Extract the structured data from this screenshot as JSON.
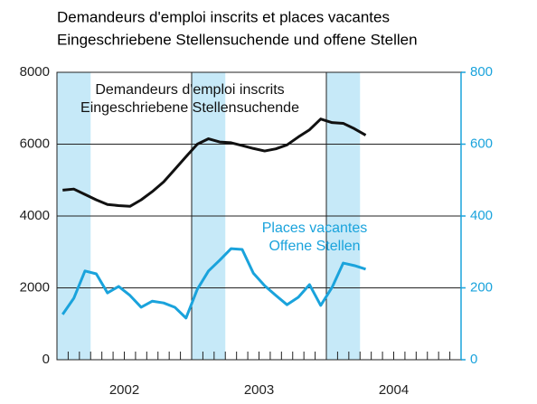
{
  "chart_data": {
    "type": "line",
    "title": "Demandeurs d'emploi inscrits et places vacantes",
    "subtitle": "Eingeschriebene Stellensuchende und offene Stellen",
    "x": [
      2002.042,
      2002.125,
      2002.208,
      2002.292,
      2002.375,
      2002.458,
      2002.542,
      2002.625,
      2002.708,
      2002.792,
      2002.875,
      2002.958,
      2003.042,
      2003.125,
      2003.208,
      2003.292,
      2003.375,
      2003.458,
      2003.542,
      2003.625,
      2003.708,
      2003.792,
      2003.875,
      2003.958,
      2004.042,
      2004.125,
      2004.208,
      2004.292
    ],
    "xlim": [
      2002,
      2005
    ],
    "xticks": [
      {
        "value": 2002.5,
        "label": "2002"
      },
      {
        "value": 2003.5,
        "label": "2003"
      },
      {
        "value": 2004.5,
        "label": "2004"
      }
    ],
    "xgrid": [
      2003,
      2004
    ],
    "shaded": [
      [
        2002,
        2002.25
      ],
      [
        2003,
        2003.25
      ],
      [
        2004,
        2004.25
      ]
    ],
    "shade_color": "#c6e9f8",
    "ylim": [
      0,
      8000
    ],
    "yticks": [
      0,
      2000,
      4000,
      6000,
      8000
    ],
    "y2lim": [
      0,
      800
    ],
    "y2ticks": [
      0,
      200,
      400,
      600,
      800
    ],
    "grid": true,
    "series": [
      {
        "labels": [
          "Demandeurs d'emploi inscrits",
          "Eingeschriebene Stellensuchende"
        ],
        "color": "#111111",
        "values": [
          4720,
          4750,
          4600,
          4450,
          4320,
          4290,
          4270,
          4450,
          4680,
          4950,
          5300,
          5650,
          6000,
          6150,
          6060,
          6040,
          5960,
          5880,
          5810,
          5870,
          5980,
          6200,
          6400,
          6700,
          6600,
          6580,
          6430,
          6250
        ]
      },
      {
        "labels": [
          "Places vacantes",
          "Offene Stellen"
        ],
        "color": "#1aa3dc",
        "axis": "y2",
        "values": [
          126,
          171,
          247,
          239,
          186,
          204,
          179,
          146,
          163,
          158,
          146,
          116,
          196,
          247,
          277,
          309,
          307,
          241,
          206,
          179,
          153,
          174,
          209,
          151,
          201,
          269,
          262,
          252
        ]
      }
    ]
  }
}
